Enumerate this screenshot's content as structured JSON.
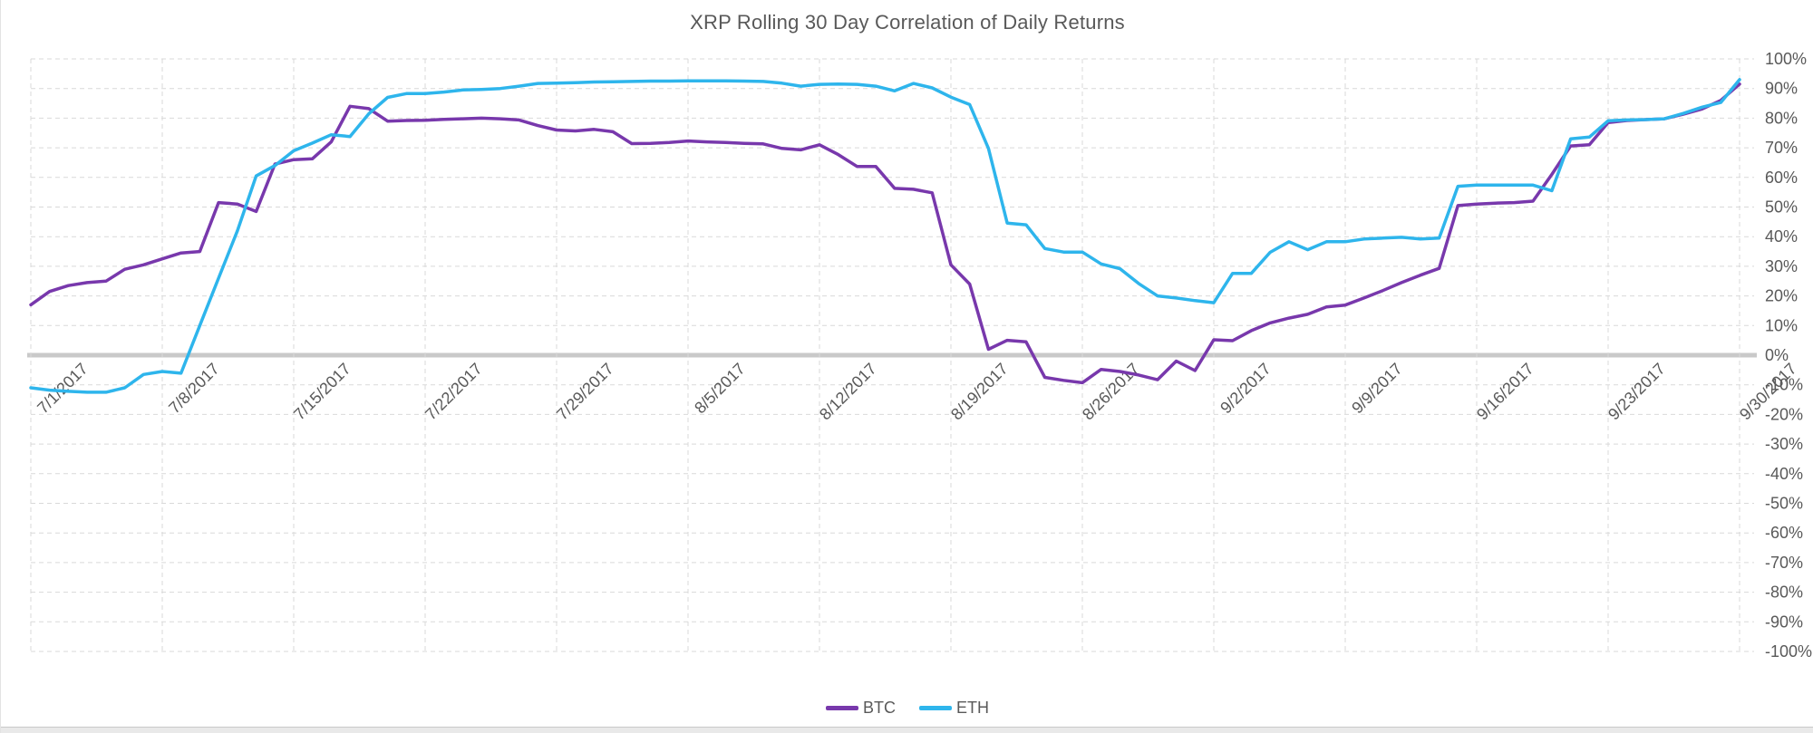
{
  "chart_data": {
    "type": "line",
    "title": "XRP Rolling 30 Day Correlation of Daily Returns",
    "x_start_label": "7/1/2017",
    "x_tick_labels": [
      "7/1/2017",
      "7/8/2017",
      "7/15/2017",
      "7/22/2017",
      "7/29/2017",
      "8/5/2017",
      "8/12/2017",
      "8/19/2017",
      "8/26/2017",
      "9/2/2017",
      "9/9/2017",
      "9/16/2017",
      "9/23/2017",
      "9/30/2017"
    ],
    "y_tick_labels": [
      "100%",
      "90%",
      "80%",
      "70%",
      "60%",
      "50%",
      "40%",
      "30%",
      "20%",
      "10%",
      "0%",
      "-10%",
      "-20%",
      "-30%",
      "-40%",
      "-50%",
      "-60%",
      "-70%",
      "-80%",
      "-90%",
      "-100%"
    ],
    "ylim": [
      -100,
      100
    ],
    "y_tick_step": 10,
    "y_axis_side": "right",
    "grid": "dashed",
    "zero_line": true,
    "legend_position": "bottom",
    "colors": {
      "gridline": "#d9d9d9",
      "zero_line": "#c9c9c9",
      "axis_text": "#595959",
      "title_text": "#595959"
    },
    "series": [
      {
        "name": "BTC",
        "color": "#7838ac",
        "values": [
          17,
          21.5,
          23.5,
          24.5,
          25,
          29,
          30.5,
          32.5,
          34.5,
          35,
          51.5,
          51,
          48.5,
          64.5,
          66,
          66.3,
          72,
          84,
          83.2,
          79,
          79.2,
          79.3,
          79.6,
          79.8,
          80,
          79.8,
          79.4,
          77.5,
          76,
          75.7,
          76.2,
          75.4,
          71.4,
          71.5,
          71.8,
          72.3,
          72,
          71.8,
          71.5,
          71.3,
          69.8,
          69.3,
          71,
          67.7,
          63.7,
          63.7,
          56.3,
          56,
          54.8,
          30.5,
          24,
          2,
          5,
          4.5,
          -7.5,
          -8.5,
          -9.3,
          -4.8,
          -5.5,
          -6.7,
          -8.3,
          -2,
          -5.2,
          5.2,
          4.9,
          8.3,
          10.9,
          12.5,
          13.8,
          16.3,
          16.9,
          19.3,
          21.8,
          24.5,
          27,
          29.3,
          50.5,
          51,
          51.3,
          51.5,
          52,
          61,
          70.6,
          71,
          78.5,
          79.2,
          79.5,
          79.8,
          81.3,
          83.1,
          86,
          91.5
        ]
      },
      {
        "name": "ETH",
        "color": "#2eb5ec",
        "values": [
          -11,
          -11.8,
          -12.2,
          -12.5,
          -12.5,
          -11,
          -6.5,
          -5.5,
          -6.1,
          10,
          26,
          42,
          60.5,
          64,
          69,
          71.6,
          74.4,
          73.8,
          81.5,
          87,
          88.3,
          88.3,
          88.8,
          89.5,
          89.7,
          90,
          90.8,
          91.7,
          91.8,
          92,
          92.2,
          92.3,
          92.4,
          92.5,
          92.5,
          92.6,
          92.6,
          92.6,
          92.5,
          92.4,
          91.8,
          90.8,
          91.4,
          91.5,
          91.4,
          90.8,
          89.2,
          91.7,
          90.2,
          87.1,
          84.6,
          69.8,
          44.6,
          44,
          36,
          34.8,
          34.8,
          30.8,
          29.2,
          24.2,
          20,
          19.3,
          18.4,
          17.7,
          27.6,
          27.6,
          34.7,
          38.3,
          35.6,
          38.3,
          38.3,
          39.2,
          39.5,
          39.8,
          39.2,
          39.5,
          57,
          57.4,
          57.4,
          57.4,
          57.4,
          55.5,
          73,
          73.6,
          79.1,
          79.4,
          79.5,
          79.8,
          81.6,
          83.7,
          85.3,
          93
        ]
      }
    ]
  }
}
